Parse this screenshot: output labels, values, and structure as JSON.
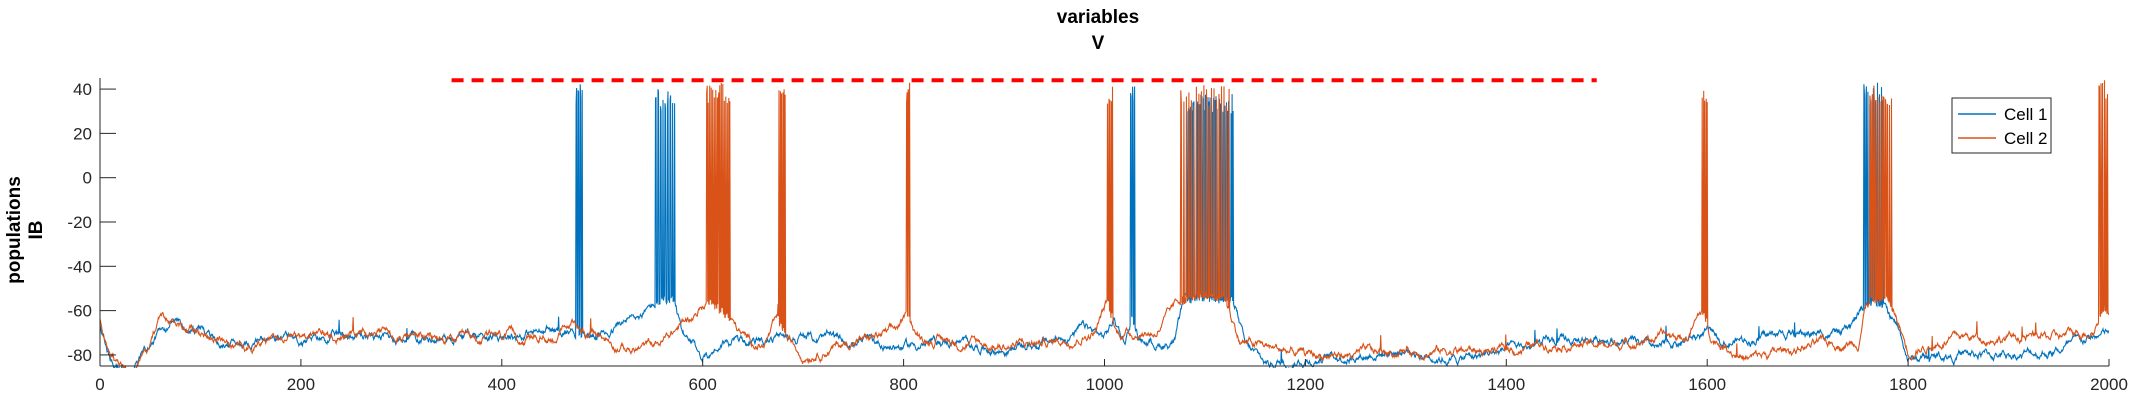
{
  "chart_data": {
    "type": "line",
    "title": [
      "variables",
      "V"
    ],
    "ylabel": [
      "populations",
      "IB"
    ],
    "xlabel": "",
    "xlim": [
      0,
      2000
    ],
    "ylim": [
      -85,
      45
    ],
    "xticks": [
      0,
      200,
      400,
      600,
      800,
      1000,
      1200,
      1400,
      1600,
      1800,
      2000
    ],
    "yticks": [
      -80,
      -60,
      -40,
      -20,
      0,
      20,
      40
    ],
    "grid": false,
    "legend_position": "top-right",
    "threshold": {
      "y": 44,
      "x_start": 350,
      "x_end": 1490,
      "color": "#ff0000",
      "style": "dashed"
    },
    "series": [
      {
        "name": "Cell 1",
        "color": "#0072bd",
        "baseline": [
          [
            0,
            -66
          ],
          [
            10,
            -82
          ],
          [
            30,
            -86
          ],
          [
            55,
            -72
          ],
          [
            70,
            -65
          ],
          [
            90,
            -70
          ],
          [
            120,
            -75
          ],
          [
            160,
            -73
          ],
          [
            200,
            -74
          ],
          [
            250,
            -71
          ],
          [
            300,
            -72
          ],
          [
            350,
            -72
          ],
          [
            400,
            -70
          ],
          [
            440,
            -70
          ],
          [
            470,
            -68
          ],
          [
            485,
            -72
          ],
          [
            500,
            -70
          ],
          [
            520,
            -66
          ],
          [
            540,
            -62
          ],
          [
            560,
            -55
          ],
          [
            570,
            -55
          ],
          [
            580,
            -72
          ],
          [
            600,
            -82
          ],
          [
            620,
            -74
          ],
          [
            650,
            -74
          ],
          [
            700,
            -72
          ],
          [
            750,
            -74
          ],
          [
            800,
            -76
          ],
          [
            850,
            -74
          ],
          [
            900,
            -78
          ],
          [
            950,
            -74
          ],
          [
            980,
            -68
          ],
          [
            1000,
            -72
          ],
          [
            1010,
            -64
          ],
          [
            1020,
            -74
          ],
          [
            1027,
            -64
          ],
          [
            1033,
            -72
          ],
          [
            1050,
            -75
          ],
          [
            1070,
            -74
          ],
          [
            1080,
            -56
          ],
          [
            1090,
            -54
          ],
          [
            1120,
            -55
          ],
          [
            1130,
            -56
          ],
          [
            1140,
            -76
          ],
          [
            1160,
            -84
          ],
          [
            1200,
            -82
          ],
          [
            1250,
            -80
          ],
          [
            1300,
            -78
          ],
          [
            1350,
            -82
          ],
          [
            1400,
            -78
          ],
          [
            1450,
            -75
          ],
          [
            1500,
            -72
          ],
          [
            1550,
            -78
          ],
          [
            1590,
            -72
          ],
          [
            1600,
            -70
          ],
          [
            1620,
            -74
          ],
          [
            1650,
            -72
          ],
          [
            1700,
            -70
          ],
          [
            1740,
            -70
          ],
          [
            1760,
            -56
          ],
          [
            1775,
            -58
          ],
          [
            1790,
            -68
          ],
          [
            1800,
            -82
          ],
          [
            1850,
            -80
          ],
          [
            1900,
            -80
          ],
          [
            1950,
            -78
          ],
          [
            2000,
            -70
          ]
        ],
        "spike_bursts": [
          [
            474,
            480,
            3,
            43
          ],
          [
            553,
            572,
            8,
            40
          ],
          [
            1026,
            1030,
            2,
            42
          ],
          [
            1082,
            1128,
            40,
            38
          ],
          [
            1756,
            1775,
            10,
            43
          ]
        ]
      },
      {
        "name": "Cell 2",
        "color": "#d95319",
        "baseline": [
          [
            0,
            -64
          ],
          [
            10,
            -80
          ],
          [
            30,
            -88
          ],
          [
            50,
            -78
          ],
          [
            60,
            -62
          ],
          [
            80,
            -64
          ],
          [
            100,
            -72
          ],
          [
            150,
            -76
          ],
          [
            200,
            -72
          ],
          [
            250,
            -70
          ],
          [
            300,
            -70
          ],
          [
            350,
            -74
          ],
          [
            400,
            -72
          ],
          [
            450,
            -72
          ],
          [
            470,
            -66
          ],
          [
            490,
            -70
          ],
          [
            530,
            -78
          ],
          [
            560,
            -74
          ],
          [
            590,
            -62
          ],
          [
            605,
            -56
          ],
          [
            625,
            -62
          ],
          [
            640,
            -72
          ],
          [
            660,
            -76
          ],
          [
            675,
            -64
          ],
          [
            685,
            -74
          ],
          [
            700,
            -80
          ],
          [
            750,
            -74
          ],
          [
            790,
            -70
          ],
          [
            805,
            -62
          ],
          [
            815,
            -72
          ],
          [
            850,
            -74
          ],
          [
            900,
            -76
          ],
          [
            950,
            -74
          ],
          [
            990,
            -70
          ],
          [
            1003,
            -56
          ],
          [
            1012,
            -70
          ],
          [
            1050,
            -70
          ],
          [
            1075,
            -56
          ],
          [
            1090,
            -53
          ],
          [
            1120,
            -54
          ],
          [
            1135,
            -74
          ],
          [
            1200,
            -80
          ],
          [
            1250,
            -80
          ],
          [
            1300,
            -78
          ],
          [
            1350,
            -78
          ],
          [
            1400,
            -78
          ],
          [
            1450,
            -74
          ],
          [
            1500,
            -76
          ],
          [
            1550,
            -72
          ],
          [
            1580,
            -72
          ],
          [
            1595,
            -60
          ],
          [
            1605,
            -72
          ],
          [
            1640,
            -82
          ],
          [
            1700,
            -76
          ],
          [
            1750,
            -74
          ],
          [
            1758,
            -56
          ],
          [
            1780,
            -54
          ],
          [
            1790,
            -66
          ],
          [
            1800,
            -78
          ],
          [
            1850,
            -72
          ],
          [
            1900,
            -72
          ],
          [
            1950,
            -72
          ],
          [
            1985,
            -68
          ],
          [
            1995,
            -58
          ],
          [
            2000,
            -62
          ]
        ],
        "spike_bursts": [
          [
            604,
            627,
            16,
            43
          ],
          [
            676,
            682,
            5,
            42
          ],
          [
            803,
            806,
            2,
            43
          ],
          [
            1003,
            1008,
            4,
            42
          ],
          [
            1076,
            1126,
            120,
            42
          ],
          [
            1595,
            1600,
            4,
            42
          ],
          [
            1762,
            1785,
            12,
            42
          ],
          [
            1990,
            2000,
            6,
            44
          ]
        ]
      }
    ]
  }
}
